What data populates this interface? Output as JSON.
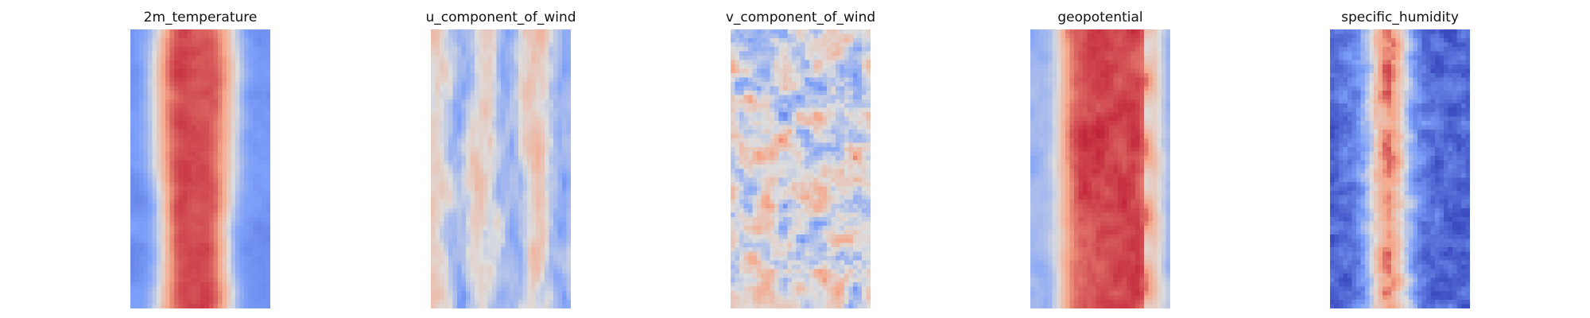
{
  "figure": {
    "background": "#ffffff",
    "colormap": "coolwarm"
  },
  "chart_data": [
    {
      "type": "heatmap",
      "title": "2m_temperature",
      "field": "2m_temperature",
      "colormap": "coolwarm",
      "axes": "off"
    },
    {
      "type": "heatmap",
      "title": "u_component_of_wind",
      "field": "u_component_of_wind",
      "colormap": "coolwarm",
      "axes": "off"
    },
    {
      "type": "heatmap",
      "title": "v_component_of_wind",
      "field": "v_component_of_wind",
      "colormap": "coolwarm",
      "axes": "off"
    },
    {
      "type": "heatmap",
      "title": "geopotential",
      "field": "geopotential",
      "colormap": "coolwarm",
      "axes": "off"
    },
    {
      "type": "heatmap",
      "title": "specific_humidity",
      "field": "specific_humidity",
      "colormap": "coolwarm",
      "axes": "off"
    }
  ]
}
